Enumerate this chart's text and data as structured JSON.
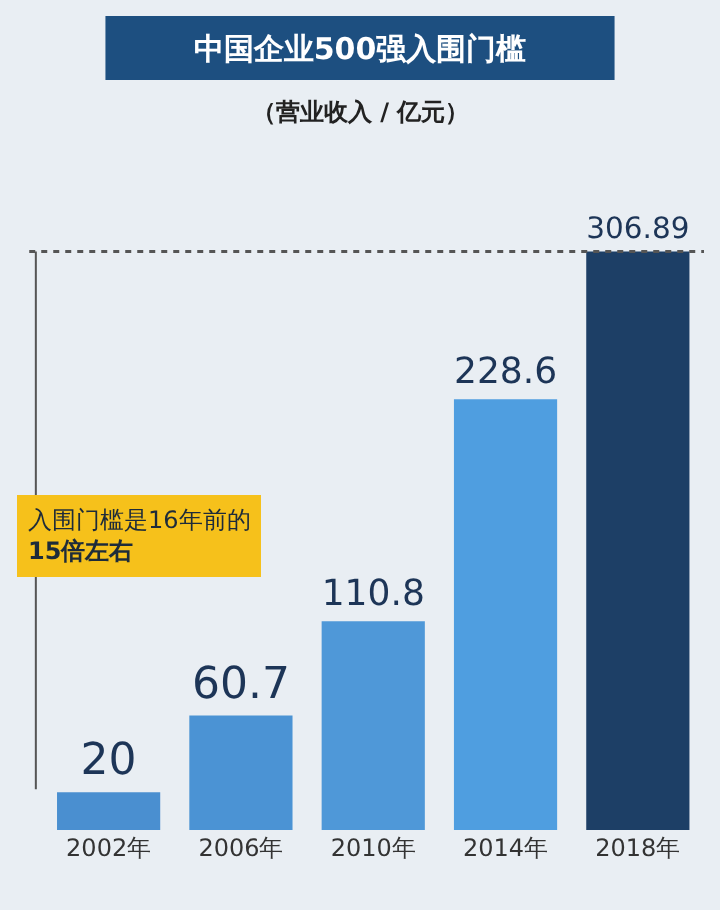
{
  "chart_data": {
    "type": "bar",
    "title": "中国企业500强入围门槛",
    "subtitle": "（营业收入 / 亿元）",
    "categories": [
      "2002年",
      "2006年",
      "2010年",
      "2014年",
      "2018年"
    ],
    "values": [
      20,
      60.7,
      110.8,
      228.6,
      306.89
    ],
    "colors": [
      "#4a8fd0",
      "#4b93d4",
      "#4f98d8",
      "#4f9ee0",
      "#1d3f66"
    ],
    "data_labels": true,
    "ref_lines": [
      {
        "axis": "y",
        "value": 306.89,
        "line_style": "dotted",
        "color": "#555555"
      }
    ],
    "annotations": [
      "入围门槛是16年前的\n15倍左右"
    ],
    "grid": false,
    "legend": false
  }
}
